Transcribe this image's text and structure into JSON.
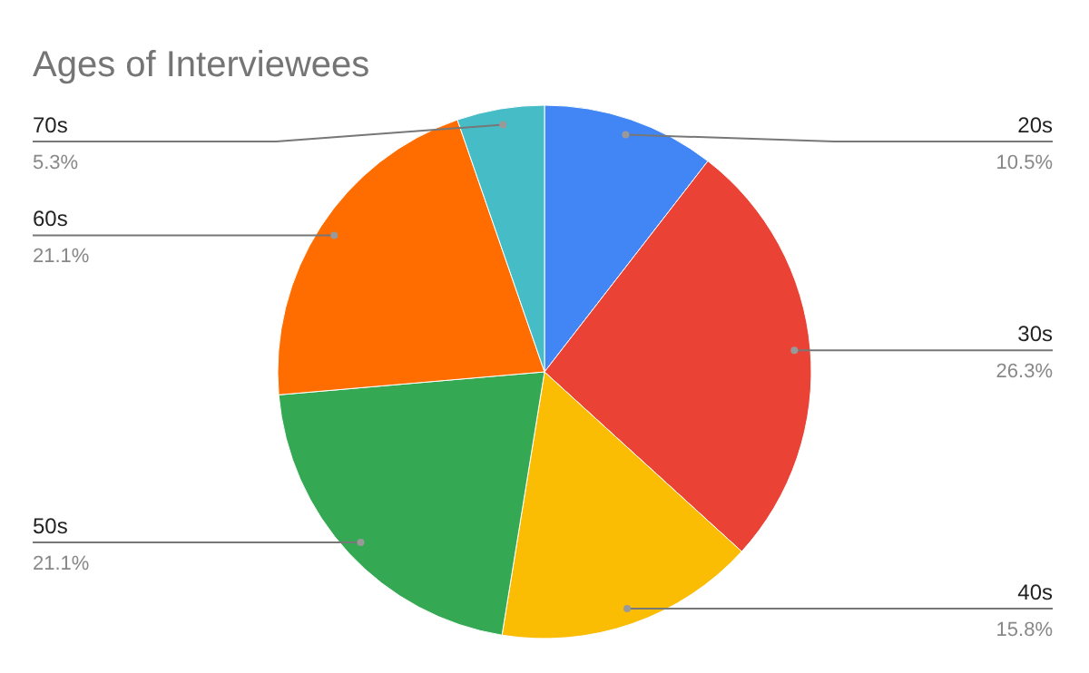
{
  "chart_data": {
    "type": "pie",
    "title": "Ages of Interviewees",
    "categories": [
      "20s",
      "30s",
      "40s",
      "50s",
      "60s",
      "70s"
    ],
    "values": [
      10.5,
      26.3,
      15.8,
      21.1,
      21.1,
      5.3
    ],
    "value_labels": [
      "10.5%",
      "26.3%",
      "15.8%",
      "21.1%",
      "21.1%",
      "5.3%"
    ],
    "colors": [
      "#4285f4",
      "#ea4335",
      "#fbbc04",
      "#34a853",
      "#ff6d01",
      "#46bdc6"
    ]
  }
}
